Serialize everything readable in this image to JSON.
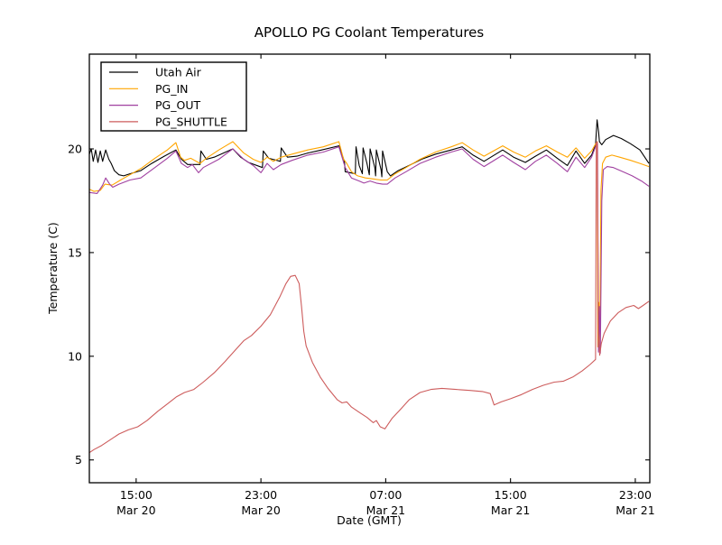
{
  "chart_data": {
    "type": "line",
    "title": "APOLLO PG Coolant Temperatures",
    "xlabel": "Date (GMT)",
    "ylabel": "Temperature (C)",
    "grid": false,
    "legend_position": "upper-left",
    "x_axis": {
      "description": "hours since Mar 20 12:00 GMT",
      "domain": [
        0,
        35.93
      ],
      "ticks": [
        {
          "t": 3,
          "time": "15:00",
          "date": "Mar 20"
        },
        {
          "t": 11,
          "time": "23:00",
          "date": "Mar 20"
        },
        {
          "t": 19,
          "time": "07:00",
          "date": "Mar 21"
        },
        {
          "t": 27,
          "time": "15:00",
          "date": "Mar 21"
        },
        {
          "t": 35,
          "time": "23:00",
          "date": "Mar 21"
        }
      ]
    },
    "y_axis": {
      "domain": [
        3.9,
        24.57
      ],
      "ticks": [
        5,
        10,
        15,
        20
      ]
    },
    "series": [
      {
        "name": "Utah Air",
        "color": "#000000",
        "points": [
          [
            0,
            19.75
          ],
          [
            0.12,
            20.0
          ],
          [
            0.25,
            19.4
          ],
          [
            0.4,
            19.95
          ],
          [
            0.55,
            19.35
          ],
          [
            0.7,
            19.9
          ],
          [
            0.85,
            19.4
          ],
          [
            1.05,
            19.95
          ],
          [
            1.25,
            19.5
          ],
          [
            1.4,
            19.3
          ],
          [
            1.6,
            18.95
          ],
          [
            1.9,
            18.75
          ],
          [
            2.2,
            18.7
          ],
          [
            2.6,
            18.8
          ],
          [
            3.3,
            18.95
          ],
          [
            4.0,
            19.3
          ],
          [
            4.8,
            19.65
          ],
          [
            5.55,
            19.95
          ],
          [
            5.9,
            19.5
          ],
          [
            6.3,
            19.25
          ],
          [
            7.1,
            19.25
          ],
          [
            7.15,
            19.9
          ],
          [
            7.5,
            19.5
          ],
          [
            8.0,
            19.6
          ],
          [
            8.6,
            19.8
          ],
          [
            9.2,
            20.0
          ],
          [
            9.7,
            19.6
          ],
          [
            10.2,
            19.35
          ],
          [
            11.1,
            19.1
          ],
          [
            11.15,
            19.9
          ],
          [
            11.5,
            19.55
          ],
          [
            12.25,
            19.4
          ],
          [
            12.3,
            20.05
          ],
          [
            12.7,
            19.6
          ],
          [
            13.3,
            19.65
          ],
          [
            14.0,
            19.8
          ],
          [
            14.9,
            19.95
          ],
          [
            16.0,
            20.15
          ],
          [
            16.35,
            19.4
          ],
          [
            16.4,
            18.9
          ],
          [
            17.05,
            18.8
          ],
          [
            17.1,
            20.1
          ],
          [
            17.3,
            19.2
          ],
          [
            17.5,
            18.8
          ],
          [
            17.55,
            20.05
          ],
          [
            17.8,
            19.3
          ],
          [
            17.95,
            18.75
          ],
          [
            18.0,
            20.0
          ],
          [
            18.3,
            19.1
          ],
          [
            18.35,
            18.7
          ],
          [
            18.4,
            19.95
          ],
          [
            18.7,
            19.0
          ],
          [
            18.75,
            18.65
          ],
          [
            18.8,
            19.9
          ],
          [
            19.1,
            18.9
          ],
          [
            19.3,
            18.7
          ],
          [
            19.8,
            18.95
          ],
          [
            20.5,
            19.2
          ],
          [
            21.3,
            19.5
          ],
          [
            22.2,
            19.75
          ],
          [
            23.2,
            19.95
          ],
          [
            23.9,
            20.1
          ],
          [
            24.6,
            19.7
          ],
          [
            25.3,
            19.4
          ],
          [
            26.5,
            19.95
          ],
          [
            27.2,
            19.6
          ],
          [
            27.95,
            19.35
          ],
          [
            28.6,
            19.65
          ],
          [
            29.3,
            19.95
          ],
          [
            30.0,
            19.55
          ],
          [
            30.65,
            19.2
          ],
          [
            31.2,
            19.9
          ],
          [
            31.75,
            19.3
          ],
          [
            32.2,
            19.7
          ],
          [
            32.45,
            20.2
          ],
          [
            32.55,
            21.4
          ],
          [
            32.65,
            20.8
          ],
          [
            32.7,
            20.35
          ],
          [
            32.85,
            20.2
          ],
          [
            33.1,
            20.45
          ],
          [
            33.6,
            20.65
          ],
          [
            34.1,
            20.5
          ],
          [
            34.7,
            20.25
          ],
          [
            35.3,
            19.95
          ],
          [
            35.87,
            19.3
          ]
        ]
      },
      {
        "name": "PG_IN",
        "color": "#FFA500",
        "points": [
          [
            0,
            18.05
          ],
          [
            0.3,
            17.95
          ],
          [
            0.7,
            18.0
          ],
          [
            1.0,
            18.3
          ],
          [
            1.45,
            18.25
          ],
          [
            2.0,
            18.5
          ],
          [
            2.6,
            18.75
          ],
          [
            3.3,
            19.05
          ],
          [
            4.2,
            19.55
          ],
          [
            5.0,
            19.95
          ],
          [
            5.55,
            20.3
          ],
          [
            5.85,
            19.6
          ],
          [
            6.1,
            19.45
          ],
          [
            6.5,
            19.55
          ],
          [
            7.1,
            19.3
          ],
          [
            7.5,
            19.55
          ],
          [
            8.3,
            19.95
          ],
          [
            9.2,
            20.35
          ],
          [
            9.9,
            19.8
          ],
          [
            10.5,
            19.5
          ],
          [
            11.0,
            19.35
          ],
          [
            11.4,
            19.6
          ],
          [
            11.8,
            19.4
          ],
          [
            12.3,
            19.6
          ],
          [
            13.0,
            19.75
          ],
          [
            14.0,
            19.95
          ],
          [
            15.0,
            20.1
          ],
          [
            16.0,
            20.35
          ],
          [
            16.3,
            19.5
          ],
          [
            16.5,
            19.3
          ],
          [
            16.8,
            18.9
          ],
          [
            17.2,
            18.7
          ],
          [
            17.7,
            18.6
          ],
          [
            18.2,
            18.55
          ],
          [
            18.7,
            18.5
          ],
          [
            19.1,
            18.5
          ],
          [
            19.6,
            18.8
          ],
          [
            20.3,
            19.1
          ],
          [
            21.2,
            19.5
          ],
          [
            22.2,
            19.85
          ],
          [
            23.2,
            20.1
          ],
          [
            23.9,
            20.3
          ],
          [
            24.6,
            19.95
          ],
          [
            25.3,
            19.65
          ],
          [
            26.5,
            20.15
          ],
          [
            27.2,
            19.85
          ],
          [
            27.95,
            19.6
          ],
          [
            28.6,
            19.9
          ],
          [
            29.3,
            20.15
          ],
          [
            30.0,
            19.85
          ],
          [
            30.65,
            19.6
          ],
          [
            31.2,
            20.05
          ],
          [
            31.75,
            19.55
          ],
          [
            32.2,
            19.9
          ],
          [
            32.5,
            20.3
          ],
          [
            32.56,
            20.35
          ],
          [
            32.6,
            10.45
          ],
          [
            32.66,
            12.6
          ],
          [
            32.72,
            10.4
          ],
          [
            32.8,
            18.0
          ],
          [
            32.9,
            19.3
          ],
          [
            33.1,
            19.6
          ],
          [
            33.5,
            19.7
          ],
          [
            34.0,
            19.6
          ],
          [
            34.7,
            19.45
          ],
          [
            35.3,
            19.3
          ],
          [
            35.87,
            19.15
          ]
        ]
      },
      {
        "name": "PG_OUT",
        "color": "#A040A0",
        "points": [
          [
            0,
            17.9
          ],
          [
            0.5,
            17.85
          ],
          [
            0.85,
            18.25
          ],
          [
            1.05,
            18.6
          ],
          [
            1.3,
            18.3
          ],
          [
            1.5,
            18.15
          ],
          [
            1.9,
            18.3
          ],
          [
            2.6,
            18.5
          ],
          [
            3.3,
            18.6
          ],
          [
            4.2,
            19.1
          ],
          [
            5.0,
            19.55
          ],
          [
            5.55,
            19.9
          ],
          [
            5.9,
            19.3
          ],
          [
            6.3,
            19.1
          ],
          [
            6.6,
            19.25
          ],
          [
            7.0,
            18.85
          ],
          [
            7.3,
            19.1
          ],
          [
            8.3,
            19.5
          ],
          [
            9.2,
            20.0
          ],
          [
            9.9,
            19.5
          ],
          [
            10.5,
            19.2
          ],
          [
            11.0,
            18.85
          ],
          [
            11.4,
            19.3
          ],
          [
            11.8,
            19.0
          ],
          [
            12.3,
            19.25
          ],
          [
            13.0,
            19.45
          ],
          [
            14.0,
            19.7
          ],
          [
            15.0,
            19.85
          ],
          [
            16.0,
            20.1
          ],
          [
            16.4,
            19.1
          ],
          [
            16.8,
            18.6
          ],
          [
            17.3,
            18.45
          ],
          [
            17.6,
            18.35
          ],
          [
            18.0,
            18.45
          ],
          [
            18.4,
            18.35
          ],
          [
            18.8,
            18.3
          ],
          [
            19.1,
            18.3
          ],
          [
            19.6,
            18.6
          ],
          [
            20.3,
            18.9
          ],
          [
            21.2,
            19.3
          ],
          [
            22.2,
            19.6
          ],
          [
            23.2,
            19.85
          ],
          [
            23.9,
            20.0
          ],
          [
            24.6,
            19.5
          ],
          [
            25.3,
            19.15
          ],
          [
            26.5,
            19.7
          ],
          [
            27.2,
            19.35
          ],
          [
            27.95,
            19.0
          ],
          [
            28.6,
            19.4
          ],
          [
            29.3,
            19.7
          ],
          [
            30.0,
            19.3
          ],
          [
            30.65,
            18.9
          ],
          [
            31.2,
            19.6
          ],
          [
            31.75,
            19.1
          ],
          [
            32.2,
            19.6
          ],
          [
            32.5,
            20.2
          ],
          [
            32.58,
            20.25
          ],
          [
            32.64,
            10.2
          ],
          [
            32.7,
            12.4
          ],
          [
            32.76,
            10.15
          ],
          [
            32.85,
            17.5
          ],
          [
            32.95,
            19.0
          ],
          [
            33.2,
            19.15
          ],
          [
            33.6,
            19.1
          ],
          [
            34.2,
            18.9
          ],
          [
            34.8,
            18.7
          ],
          [
            35.4,
            18.45
          ],
          [
            35.87,
            18.2
          ]
        ]
      },
      {
        "name": "PG_SHUTTLE",
        "color": "#CD5C5C",
        "points": [
          [
            0,
            5.35
          ],
          [
            0.3,
            5.5
          ],
          [
            0.8,
            5.7
          ],
          [
            1.4,
            6.0
          ],
          [
            1.9,
            6.25
          ],
          [
            2.5,
            6.45
          ],
          [
            3.1,
            6.6
          ],
          [
            3.7,
            6.9
          ],
          [
            4.4,
            7.35
          ],
          [
            5.0,
            7.7
          ],
          [
            5.6,
            8.05
          ],
          [
            6.1,
            8.25
          ],
          [
            6.7,
            8.4
          ],
          [
            7.3,
            8.75
          ],
          [
            8.0,
            9.2
          ],
          [
            8.7,
            9.75
          ],
          [
            9.3,
            10.25
          ],
          [
            9.9,
            10.75
          ],
          [
            10.4,
            11.0
          ],
          [
            11.0,
            11.45
          ],
          [
            11.6,
            12.0
          ],
          [
            12.2,
            12.85
          ],
          [
            12.6,
            13.5
          ],
          [
            12.9,
            13.85
          ],
          [
            13.2,
            13.9
          ],
          [
            13.45,
            13.5
          ],
          [
            13.6,
            12.4
          ],
          [
            13.75,
            11.2
          ],
          [
            13.9,
            10.5
          ],
          [
            14.3,
            9.7
          ],
          [
            14.8,
            9.0
          ],
          [
            15.3,
            8.45
          ],
          [
            15.9,
            7.9
          ],
          [
            16.2,
            7.75
          ],
          [
            16.5,
            7.8
          ],
          [
            16.8,
            7.55
          ],
          [
            17.3,
            7.3
          ],
          [
            17.8,
            7.05
          ],
          [
            18.2,
            6.8
          ],
          [
            18.4,
            6.9
          ],
          [
            18.65,
            6.6
          ],
          [
            18.95,
            6.5
          ],
          [
            19.4,
            7.0
          ],
          [
            19.9,
            7.4
          ],
          [
            20.5,
            7.9
          ],
          [
            21.2,
            8.25
          ],
          [
            21.9,
            8.4
          ],
          [
            22.6,
            8.45
          ],
          [
            23.5,
            8.4
          ],
          [
            24.4,
            8.35
          ],
          [
            25.2,
            8.3
          ],
          [
            25.7,
            8.2
          ],
          [
            25.95,
            7.65
          ],
          [
            26.4,
            7.8
          ],
          [
            27.0,
            7.95
          ],
          [
            27.7,
            8.15
          ],
          [
            28.4,
            8.4
          ],
          [
            29.1,
            8.6
          ],
          [
            29.8,
            8.75
          ],
          [
            30.4,
            8.8
          ],
          [
            31.0,
            9.0
          ],
          [
            31.6,
            9.3
          ],
          [
            32.1,
            9.6
          ],
          [
            32.45,
            9.85
          ],
          [
            32.5,
            20.3
          ],
          [
            32.56,
            20.35
          ],
          [
            32.64,
            11.0
          ],
          [
            32.72,
            10.05
          ],
          [
            32.82,
            10.6
          ],
          [
            33.0,
            11.1
          ],
          [
            33.4,
            11.7
          ],
          [
            33.9,
            12.1
          ],
          [
            34.4,
            12.35
          ],
          [
            34.9,
            12.45
          ],
          [
            35.2,
            12.3
          ],
          [
            35.5,
            12.45
          ],
          [
            35.87,
            12.65
          ]
        ]
      }
    ]
  }
}
